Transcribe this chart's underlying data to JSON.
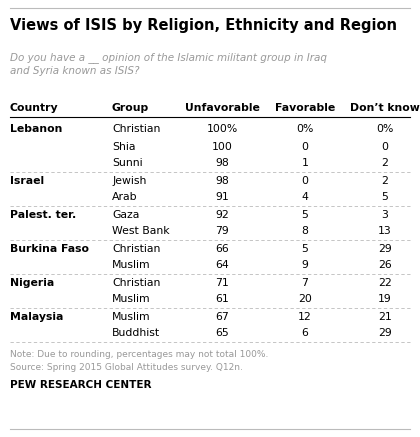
{
  "title": "Views of ISIS by Religion, Ethnicity and Region",
  "subtitle": "Do you have a __ opinion of the Islamic militant group in Iraq\nand Syria known as ISIS?",
  "col_headers": [
    "Country",
    "Group",
    "Unfavorable",
    "Favorable",
    "Don’t know"
  ],
  "rows": [
    {
      "country": "Lebanon",
      "group": "Christian",
      "unfavorable": "100%",
      "favorable": "0%",
      "dont_know": "0%"
    },
    {
      "country": "",
      "group": "Shia",
      "unfavorable": "100",
      "favorable": "0",
      "dont_know": "0"
    },
    {
      "country": "",
      "group": "Sunni",
      "unfavorable": "98",
      "favorable": "1",
      "dont_know": "2"
    },
    {
      "country": "Israel",
      "group": "Jewish",
      "unfavorable": "98",
      "favorable": "0",
      "dont_know": "2"
    },
    {
      "country": "",
      "group": "Arab",
      "unfavorable": "91",
      "favorable": "4",
      "dont_know": "5"
    },
    {
      "country": "Palest. ter.",
      "group": "Gaza",
      "unfavorable": "92",
      "favorable": "5",
      "dont_know": "3"
    },
    {
      "country": "",
      "group": "West Bank",
      "unfavorable": "79",
      "favorable": "8",
      "dont_know": "13"
    },
    {
      "country": "Burkina Faso",
      "group": "Christian",
      "unfavorable": "66",
      "favorable": "5",
      "dont_know": "29"
    },
    {
      "country": "",
      "group": "Muslim",
      "unfavorable": "64",
      "favorable": "9",
      "dont_know": "26"
    },
    {
      "country": "Nigeria",
      "group": "Christian",
      "unfavorable": "71",
      "favorable": "7",
      "dont_know": "22"
    },
    {
      "country": "",
      "group": "Muslim",
      "unfavorable": "61",
      "favorable": "20",
      "dont_know": "19"
    },
    {
      "country": "Malaysia",
      "group": "Muslim",
      "unfavorable": "67",
      "favorable": "12",
      "dont_know": "21"
    },
    {
      "country": "",
      "group": "Buddhist",
      "unfavorable": "65",
      "favorable": "6",
      "dont_know": "29"
    }
  ],
  "divider_after": [
    2,
    4,
    6,
    8,
    10,
    12
  ],
  "note": "Note: Due to rounding, percentages may not total 100%.\nSource: Spring 2015 Global Attitudes survey. Q12n.",
  "source": "PEW RESEARCH CENTER",
  "bg_color": "#ffffff",
  "text_color": "#000000",
  "subtitle_color": "#999999",
  "divider_color": "#bbbbbb",
  "note_color": "#999999"
}
